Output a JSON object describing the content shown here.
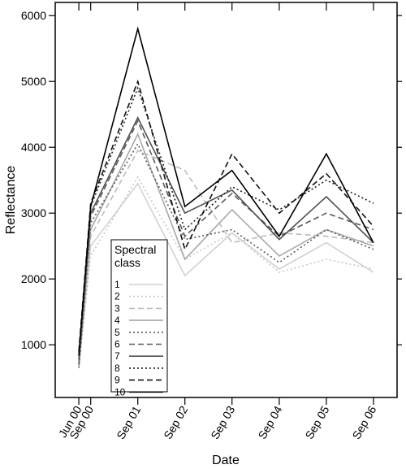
{
  "chart_data": {
    "type": "line",
    "xlabel": "Date",
    "ylabel": "Reflectance",
    "x": [
      "2000-06-01",
      "2000-09-01",
      "2001-09-01",
      "2002-09-01",
      "2003-09-01",
      "2004-09-01",
      "2005-09-01",
      "2006-09-01"
    ],
    "x_tick_labels": [
      "Jun 00",
      "Sep 00",
      "Sep 01",
      "Sep 02",
      "Sep 03",
      "Sep 04",
      "Sep 05",
      "Sep 06"
    ],
    "ylim": [
      200,
      6200
    ],
    "yticks": [
      1000,
      2000,
      3000,
      4000,
      5000,
      6000
    ],
    "legend": {
      "title_line1": "Spectral",
      "title_line2": "class",
      "placement": "bottom-left"
    },
    "series": [
      {
        "name": "1",
        "color": "#d2d2d2",
        "dash": "solid",
        "values": [
          650,
          2500,
          3450,
          2050,
          2700,
          2150,
          2550,
          2100
        ]
      },
      {
        "name": "2",
        "color": "#c8c8c8",
        "dash": "dotted",
        "values": [
          650,
          2350,
          3550,
          2300,
          2700,
          2100,
          2300,
          2150
        ]
      },
      {
        "name": "3",
        "color": "#bdbdbd",
        "dash": "dashed",
        "values": [
          700,
          2650,
          3950,
          3650,
          2550,
          2700,
          2650,
          2550
        ]
      },
      {
        "name": "4",
        "color": "#a8a8a8",
        "dash": "solid",
        "values": [
          680,
          2750,
          4200,
          2300,
          3050,
          2350,
          2750,
          2500
        ]
      },
      {
        "name": "5",
        "color": "#5a5a5a",
        "dash": "dotted",
        "values": [
          650,
          2850,
          4050,
          2600,
          2750,
          2250,
          2750,
          2450
        ]
      },
      {
        "name": "6",
        "color": "#5a5a5a",
        "dash": "dashed",
        "values": [
          700,
          2950,
          4400,
          2650,
          3300,
          2650,
          3000,
          2750
        ]
      },
      {
        "name": "7",
        "color": "#505050",
        "dash": "solid",
        "values": [
          780,
          3000,
          4450,
          3000,
          3350,
          2600,
          3250,
          2550
        ]
      },
      {
        "name": "8",
        "color": "#1e1e1e",
        "dash": "dotted",
        "values": [
          830,
          3100,
          4900,
          2750,
          3400,
          3050,
          3500,
          3150
        ]
      },
      {
        "name": "9",
        "color": "#111111",
        "dash": "dashed",
        "values": [
          900,
          3150,
          5000,
          2450,
          3900,
          3000,
          3600,
          2800
        ]
      },
      {
        "name": "10",
        "color": "#000000",
        "dash": "solid",
        "values": [
          850,
          3100,
          5800,
          3100,
          3650,
          2650,
          3900,
          2550
        ]
      }
    ]
  }
}
